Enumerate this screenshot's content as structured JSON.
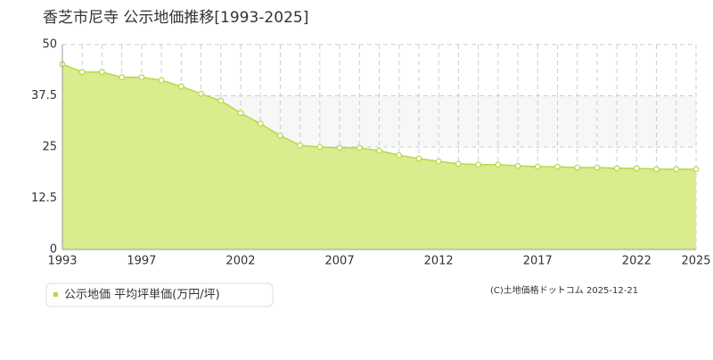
{
  "chart_data": {
    "type": "area",
    "title": "香芝市尼寺 公示地価推移[1993-2025]",
    "source": "(C)土地価格ドットコム 2025-12-21",
    "x": [
      1993,
      1994,
      1995,
      1996,
      1997,
      1998,
      1999,
      2000,
      2001,
      2002,
      2003,
      2004,
      2005,
      2006,
      2007,
      2008,
      2009,
      2010,
      2011,
      2012,
      2013,
      2014,
      2015,
      2016,
      2017,
      2018,
      2019,
      2020,
      2021,
      2022,
      2023,
      2024,
      2025
    ],
    "series": [
      {
        "name": "公示地価 平均坪単価(万円/坪)",
        "color": "#b5d945",
        "values": [
          45.2,
          43.3,
          43.3,
          42.0,
          42.0,
          41.3,
          39.8,
          38.0,
          36.3,
          33.3,
          30.7,
          27.8,
          25.4,
          25.0,
          24.8,
          24.8,
          24.1,
          23.0,
          22.2,
          21.5,
          20.9,
          20.7,
          20.7,
          20.4,
          20.2,
          20.2,
          20.0,
          20.0,
          19.8,
          19.8,
          19.6,
          19.6,
          19.6
        ]
      }
    ],
    "xlim": [
      1993,
      2025
    ],
    "xticks": [
      1993,
      1997,
      2002,
      2007,
      2012,
      2017,
      2022,
      2025
    ],
    "ylim": [
      0,
      50
    ],
    "yticks": [
      0,
      12.5,
      25,
      37.5,
      50
    ],
    "grid": true
  }
}
